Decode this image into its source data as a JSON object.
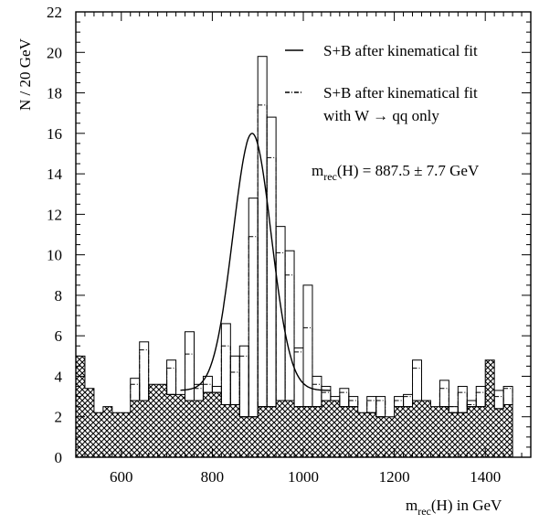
{
  "chart_data": {
    "type": "histogram",
    "xlabel": {
      "main": "m",
      "sub": "rec",
      "rest": "(H) in GeV"
    },
    "ylabel": "N / 20 GeV",
    "xlim": [
      500,
      1500
    ],
    "ylim": [
      0,
      22
    ],
    "x_ticks": [
      "600",
      "800",
      "1000",
      "1200",
      "1400"
    ],
    "y_ticks": [
      "0",
      "2",
      "4",
      "6",
      "8",
      "10",
      "12",
      "14",
      "16",
      "18",
      "20",
      "22"
    ],
    "bin_width": 20,
    "bin_start": 500,
    "background_label": "",
    "background": [
      5.0,
      3.4,
      2.2,
      2.5,
      2.2,
      2.2,
      2.8,
      2.8,
      3.6,
      3.6,
      3.1,
      3.1,
      2.8,
      2.8,
      3.2,
      3.2,
      2.6,
      2.6,
      2.0,
      2.0,
      2.5,
      2.5,
      2.8,
      2.8,
      2.5,
      2.5,
      2.5,
      2.8,
      2.8,
      2.5,
      2.5,
      2.2,
      2.2,
      2.0,
      2.0,
      2.5,
      2.5,
      2.8,
      2.8,
      2.5,
      2.5,
      2.2,
      2.2,
      2.5,
      2.5,
      4.8,
      2.4,
      2.6
    ],
    "series": [
      {
        "name": "S+B after kinematical fit",
        "style": "solid",
        "values": [
          5.0,
          3.4,
          2.2,
          2.5,
          2.2,
          2.2,
          3.9,
          5.7,
          3.6,
          3.1,
          4.8,
          3.1,
          6.2,
          3.6,
          4.0,
          3.5,
          6.6,
          5.0,
          5.5,
          12.8,
          19.8,
          16.8,
          11.4,
          10.2,
          5.4,
          8.5,
          4.0,
          3.5,
          3.0,
          3.4,
          3.0,
          1.3,
          3.0,
          3.0,
          1.6,
          3.0,
          3.1,
          4.8,
          2.5,
          1.5,
          3.8,
          2.5,
          3.5,
          2.8,
          3.5,
          4.4,
          3.3,
          3.5
        ]
      },
      {
        "name": "S+B after kinematical fit",
        "name2": "with W → qq only",
        "style": "dashdot",
        "values": [
          5.0,
          3.4,
          2.2,
          2.5,
          2.2,
          2.2,
          3.6,
          5.3,
          3.6,
          3.0,
          4.4,
          3.0,
          5.1,
          3.4,
          3.6,
          3.2,
          5.5,
          4.2,
          5.0,
          10.9,
          17.4,
          14.8,
          10.1,
          9.0,
          5.2,
          6.4,
          3.6,
          3.2,
          2.8,
          3.2,
          2.8,
          1.2,
          2.8,
          2.8,
          1.4,
          2.8,
          3.0,
          4.4,
          2.5,
          1.4,
          3.4,
          2.5,
          3.2,
          2.6,
          3.2,
          4.6,
          3.0,
          3.4
        ]
      }
    ],
    "fit": {
      "type": "gaussian",
      "mean": 887.5,
      "sigma": 42,
      "amplitude": 12.7,
      "baseline": 3.3
    },
    "annotation": {
      "main": "m",
      "sub": "rec",
      "rest": "(H) = 887.5 ± 7.7 GeV"
    },
    "legend_position": "top-right",
    "grid": false
  }
}
